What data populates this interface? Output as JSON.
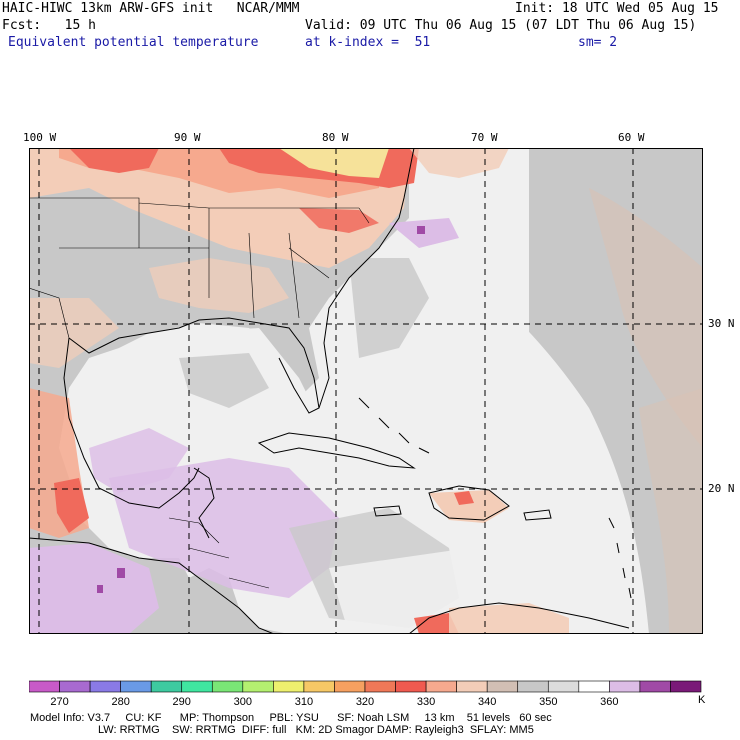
{
  "header": {
    "title": "HAIC-HIWC 13km ARW-GFS init   NCAR/MMM",
    "init": "Init: 18 UTC Wed 05 Aug 15",
    "fcst": "Fcst:   15 h",
    "valid": "Valid: 09 UTC Thu 06 Aug 15 (07 LDT Thu 06 Aug 15)",
    "field": "Equivalent potential temperature",
    "level": "at k-index =  51",
    "smooth": "sm= 2"
  },
  "map": {
    "lon_labels": [
      "100 W",
      "90 W",
      "80 W",
      "70 W",
      "60 W"
    ],
    "lat_labels": [
      "30 N",
      "20 N"
    ],
    "colors": {
      "gray_light": "#f0f0f0",
      "gray_mid": "#c8c8c8",
      "lavender": "#dcbde6",
      "salmon": "#f6a98e",
      "peach": "#f3cdb8",
      "red": "#f06a5c",
      "purple": "#a04aa6",
      "tan": "#d9c2b4",
      "yellow": "#f6e29a"
    }
  },
  "colorbar": {
    "colors": [
      "#c85ac8",
      "#a86ad0",
      "#8a7ae6",
      "#6a9ae6",
      "#3ecaa0",
      "#40e6a0",
      "#7ae676",
      "#b4f070",
      "#eef06e",
      "#f6c866",
      "#f6a060",
      "#f07858",
      "#f05a50",
      "#f6a98e",
      "#f3cdb8",
      "#d2bfb4",
      "#c8c8c8",
      "#dcdcdc",
      "#ffffff",
      "#dcbde6",
      "#a04aa6",
      "#7a1a78"
    ],
    "labels": [
      "270",
      "280",
      "290",
      "300",
      "310",
      "320",
      "330",
      "340",
      "350",
      "360"
    ],
    "unit": "K"
  },
  "footer": {
    "line1": "Model Info: V3.7     CU: KF      MP: Thompson     PBL: YSU      SF: Noah LSM     13 km    51 levels   60 sec",
    "line2": "LW: RRTMG    SW: RRTMG  DIFF: full   KM: 2D Smagor DAMP: Rayleigh3  SFLAY: MM5"
  }
}
